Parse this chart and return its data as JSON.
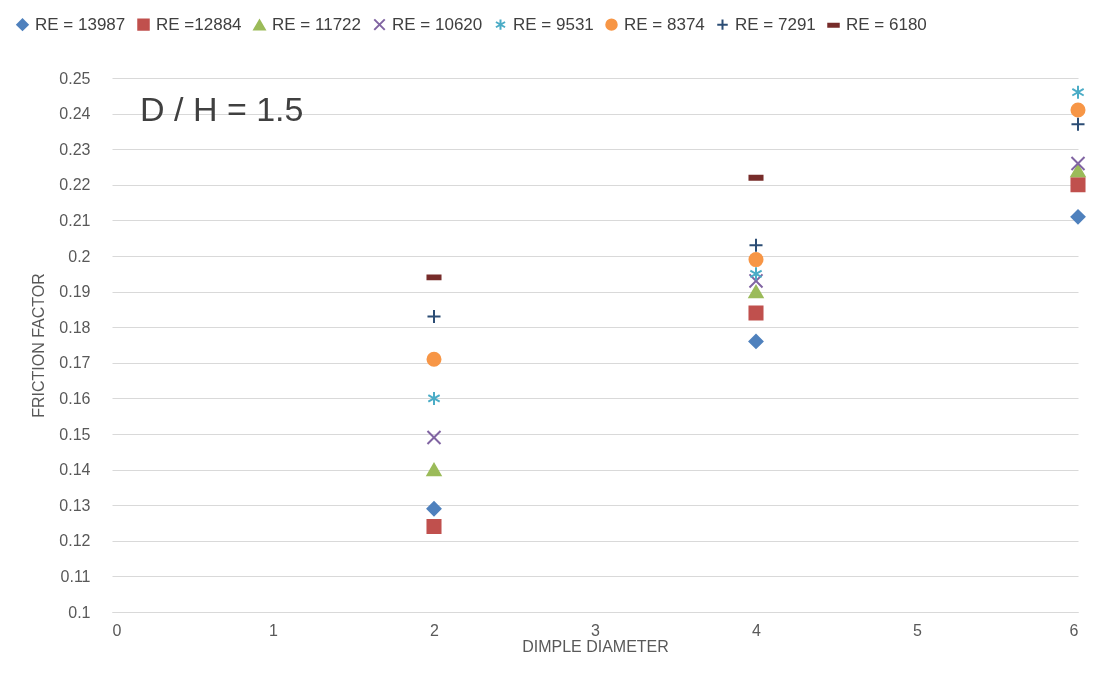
{
  "chart_data": {
    "type": "scatter",
    "annotations": [
      "D / H = 1.5"
    ],
    "xlabel": "DIMPLE DIAMETER",
    "ylabel": "FRICTION FACTOR",
    "x": [
      2,
      4,
      6
    ],
    "series": [
      {
        "name": "RE = 13987",
        "color": "#4f81bd",
        "marker": "diamond",
        "values": [
          0.129,
          0.176,
          0.211
        ]
      },
      {
        "name": "RE =12884",
        "color": "#c0504d",
        "marker": "square",
        "values": [
          0.124,
          0.184,
          0.22
        ]
      },
      {
        "name": "RE = 11722",
        "color": "#9bbb59",
        "marker": "triangle",
        "values": [
          0.14,
          0.19,
          0.224
        ]
      },
      {
        "name": "RE = 10620",
        "color": "#8064a2",
        "marker": "cross",
        "values": [
          0.149,
          0.193,
          0.226
        ]
      },
      {
        "name": "RE = 9531",
        "color": "#4bacc6",
        "marker": "cross",
        "values": [
          0.16,
          0.195,
          0.246
        ]
      },
      {
        "name": "RE = 8374",
        "color": "#f79646",
        "marker": "circle",
        "values": [
          0.171,
          0.199,
          0.241
        ]
      },
      {
        "name": "RE = 7291",
        "color": "#2c4d75",
        "marker": "plus",
        "values": [
          0.183,
          0.203,
          0.237
        ]
      },
      {
        "name": "RE = 6180",
        "color": "#772c2a",
        "marker": "square",
        "values": [
          0.194,
          0.222,
          null
        ]
      }
    ],
    "xlim": [
      0,
      6
    ],
    "xticks": [
      0,
      1,
      2,
      3,
      4,
      5,
      6
    ],
    "ylim": [
      0.1,
      0.25
    ],
    "yticks": [
      0.1,
      0.11,
      0.12,
      0.13,
      0.14,
      0.15,
      0.16,
      0.17,
      0.18,
      0.19,
      0.2,
      0.21,
      0.22,
      0.23,
      0.24,
      0.25
    ],
    "grid": "y",
    "legend": "top"
  }
}
